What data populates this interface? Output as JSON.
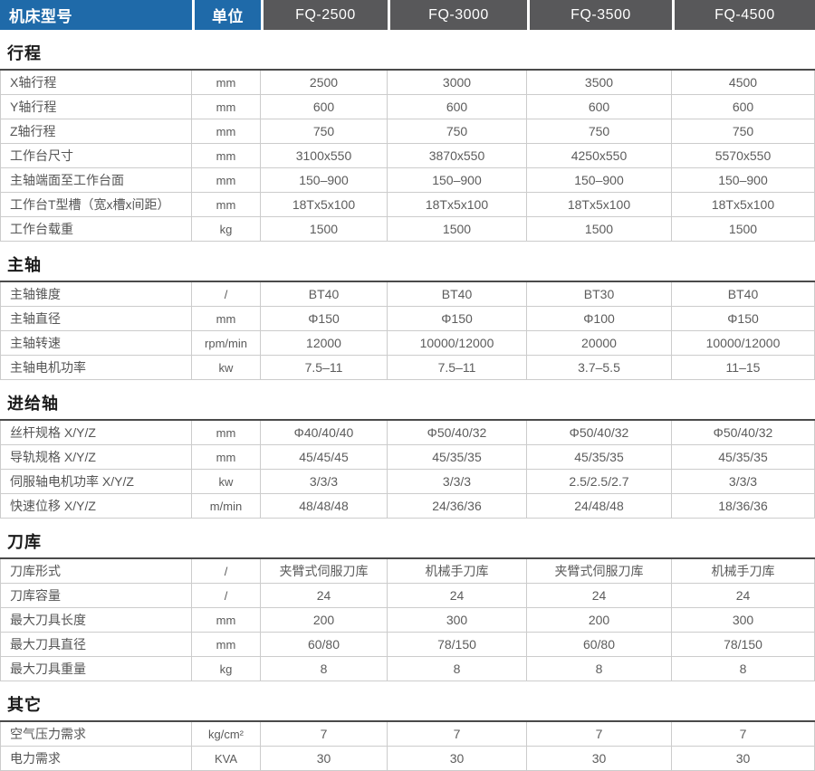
{
  "header": {
    "model_label": "机床型号",
    "unit_label": "单位",
    "models": [
      "FQ-2500",
      "FQ-3000",
      "FQ-3500",
      "FQ-4500"
    ],
    "colors": {
      "label_bg": "#1f6aa9",
      "model_bg": "#58585a",
      "header_text": "#ffffff",
      "grid_line": "#cccccc",
      "section_rule": "#4a4a4a",
      "body_text": "#555555"
    }
  },
  "sections": [
    {
      "title": "行程",
      "rows": [
        {
          "label": "X轴行程",
          "unit": "mm",
          "values": [
            "2500",
            "3000",
            "3500",
            "4500"
          ]
        },
        {
          "label": "Y轴行程",
          "unit": "mm",
          "values": [
            "600",
            "600",
            "600",
            "600"
          ]
        },
        {
          "label": "Z轴行程",
          "unit": "mm",
          "values": [
            "750",
            "750",
            "750",
            "750"
          ]
        },
        {
          "label": "工作台尺寸",
          "unit": "mm",
          "values": [
            "3100x550",
            "3870x550",
            "4250x550",
            "5570x550"
          ]
        },
        {
          "label": "主轴端面至工作台面",
          "unit": "mm",
          "values": [
            "150–900",
            "150–900",
            "150–900",
            "150–900"
          ]
        },
        {
          "label": "工作台T型槽（宽x槽x间距）",
          "unit": "mm",
          "values": [
            "18Tx5x100",
            "18Tx5x100",
            "18Tx5x100",
            "18Tx5x100"
          ]
        },
        {
          "label": "工作台载重",
          "unit": "kg",
          "values": [
            "1500",
            "1500",
            "1500",
            "1500"
          ]
        }
      ]
    },
    {
      "title": "主轴",
      "rows": [
        {
          "label": "主轴锥度",
          "unit": "/",
          "values": [
            "BT40",
            "BT40",
            "BT30",
            "BT40"
          ]
        },
        {
          "label": "主轴直径",
          "unit": "mm",
          "values": [
            "Φ150",
            "Φ150",
            "Φ100",
            "Φ150"
          ]
        },
        {
          "label": "主轴转速",
          "unit": "rpm/min",
          "values": [
            "12000",
            "10000/12000",
            "20000",
            "10000/12000"
          ]
        },
        {
          "label": "主轴电机功率",
          "unit": "kw",
          "values": [
            "7.5–11",
            "7.5–11",
            "3.7–5.5",
            "11–15"
          ]
        }
      ]
    },
    {
      "title": "进给轴",
      "rows": [
        {
          "label": "丝杆规格 X/Y/Z",
          "unit": "mm",
          "values": [
            "Φ40/40/40",
            "Φ50/40/32",
            "Φ50/40/32",
            "Φ50/40/32"
          ]
        },
        {
          "label": "导轨规格 X/Y/Z",
          "unit": "mm",
          "values": [
            "45/45/45",
            "45/35/35",
            "45/35/35",
            "45/35/35"
          ]
        },
        {
          "label": "伺服轴电机功率 X/Y/Z",
          "unit": "kw",
          "values": [
            "3/3/3",
            "3/3/3",
            "2.5/2.5/2.7",
            "3/3/3"
          ]
        },
        {
          "label": "快速位移 X/Y/Z",
          "unit": "m/min",
          "values": [
            "48/48/48",
            "24/36/36",
            "24/48/48",
            "18/36/36"
          ]
        }
      ]
    },
    {
      "title": "刀库",
      "rows": [
        {
          "label": "刀库形式",
          "unit": "/",
          "values": [
            "夹臂式伺服刀库",
            "机械手刀库",
            "夹臂式伺服刀库",
            "机械手刀库"
          ]
        },
        {
          "label": "刀库容量",
          "unit": "/",
          "values": [
            "24",
            "24",
            "24",
            "24"
          ]
        },
        {
          "label": "最大刀具长度",
          "unit": "mm",
          "values": [
            "200",
            "300",
            "200",
            "300"
          ]
        },
        {
          "label": "最大刀具直径",
          "unit": "mm",
          "values": [
            "60/80",
            "78/150",
            "60/80",
            "78/150"
          ]
        },
        {
          "label": "最大刀具重量",
          "unit": "kg",
          "values": [
            "8",
            "8",
            "8",
            "8"
          ]
        }
      ]
    },
    {
      "title": "其它",
      "rows": [
        {
          "label": "空气压力需求",
          "unit": "kg/cm²",
          "values": [
            "7",
            "7",
            "7",
            "7"
          ]
        },
        {
          "label": "电力需求",
          "unit": "KVA",
          "values": [
            "30",
            "30",
            "30",
            "30"
          ]
        }
      ]
    }
  ]
}
